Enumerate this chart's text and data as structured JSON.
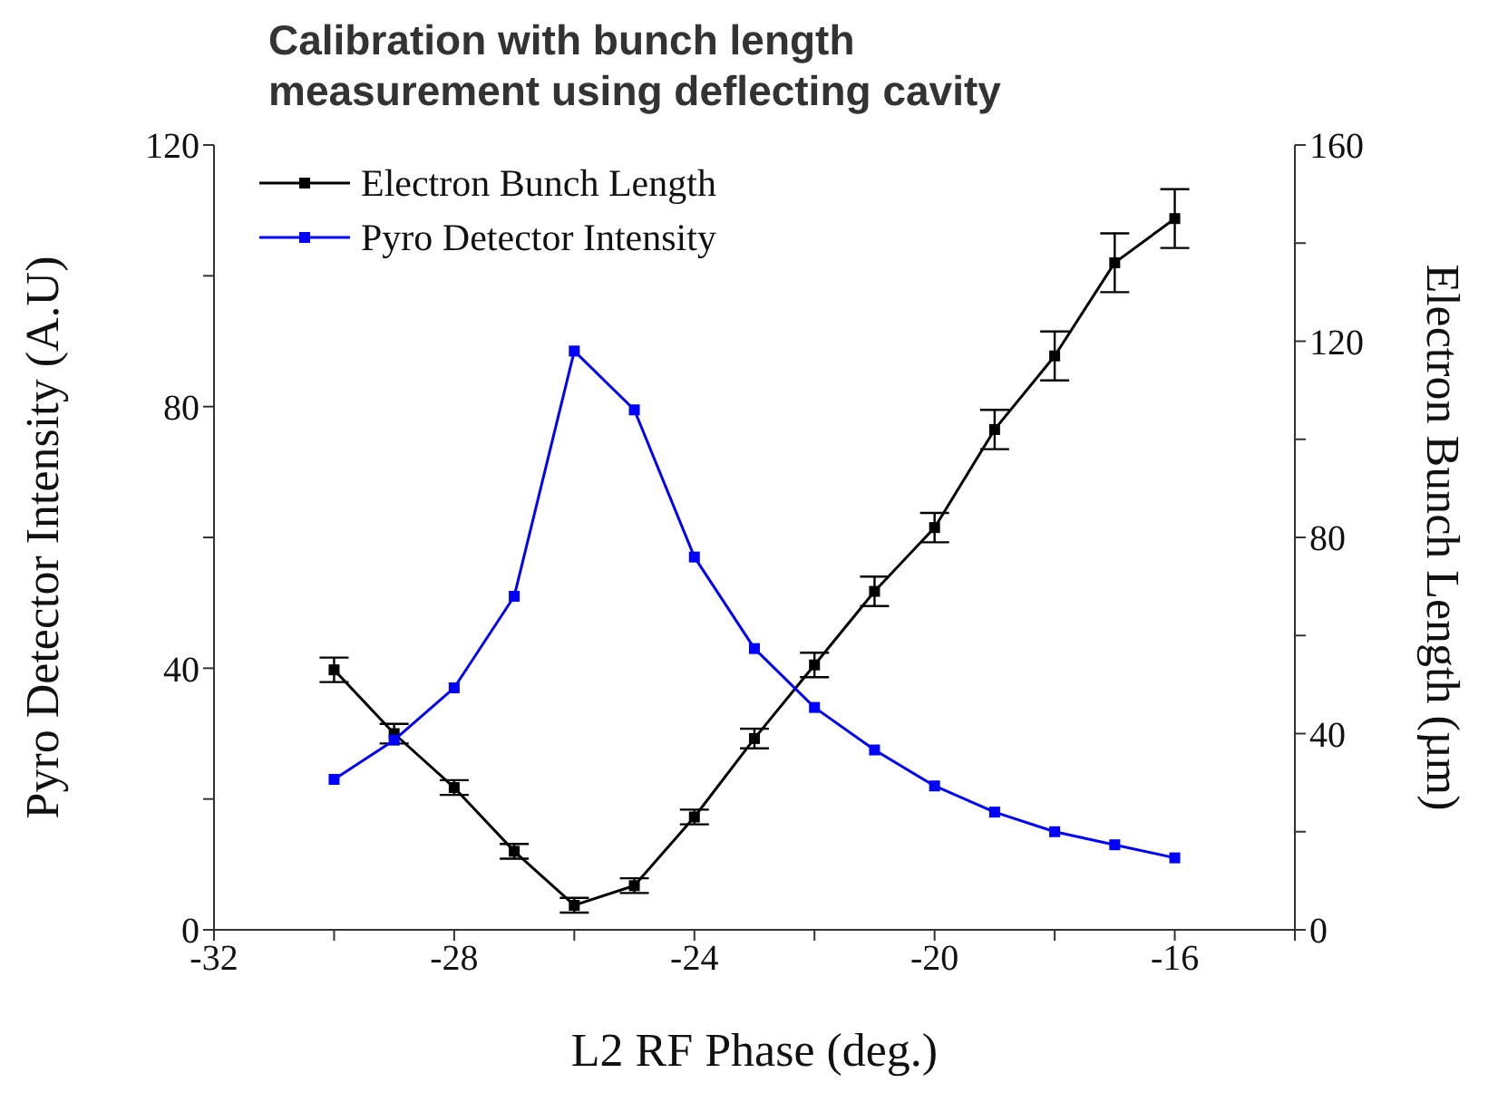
{
  "chart_data": {
    "type": "line",
    "title": "Calibration with bunch length\nmeasurement using deflecting cavity",
    "xlabel": "L2 RF Phase (deg.)",
    "ylabel": "Pyro Detector Intensity (A.U)",
    "y2label": "Electron Bunch Length (µm)",
    "x": [
      -30,
      -29,
      -28,
      -27,
      -26,
      -25,
      -24,
      -23,
      -22,
      -21,
      -20,
      -19,
      -18,
      -17,
      -16
    ],
    "series": [
      {
        "name": "Electron Bunch Length",
        "color": "#000000",
        "axis": "y2",
        "values": [
          53,
          40,
          29,
          16,
          5,
          9,
          23,
          39,
          54,
          69,
          82,
          102,
          117,
          136,
          145
        ],
        "errors": [
          2.5,
          2,
          1.5,
          1.5,
          1.5,
          1.5,
          1.5,
          2,
          2.5,
          3,
          3,
          4,
          5,
          6,
          6
        ]
      },
      {
        "name": "Pyro Detector Intensity",
        "color": "#0000ff",
        "values": [
          23,
          29,
          37,
          51,
          88.5,
          79.5,
          57,
          43,
          34,
          27.5,
          22,
          18,
          15,
          13,
          11
        ]
      }
    ],
    "xlim": [
      -32,
      -14
    ],
    "xticks": [
      -32,
      {
        "value": -30,
        "label": null
      },
      -28,
      {
        "value": -26,
        "label": null
      },
      -24,
      {
        "value": -22,
        "label": null
      },
      -20,
      {
        "value": -18,
        "label": null
      },
      -16,
      {
        "value": -14,
        "label": null
      }
    ],
    "ylim": [
      0,
      120
    ],
    "yticks": [
      0,
      {
        "value": 20,
        "label": null
      },
      40,
      {
        "value": 60,
        "label": null
      },
      80,
      {
        "value": 100,
        "label": null
      },
      120
    ],
    "y2lim": [
      0,
      160
    ],
    "y2ticks": [
      0,
      {
        "value": 20,
        "label": null
      },
      40,
      {
        "value": 60,
        "label": null
      },
      80,
      {
        "value": 100,
        "label": null
      },
      120,
      {
        "value": 140,
        "label": null
      },
      160
    ],
    "marker": "square",
    "line_style": "solid",
    "legend": "top left",
    "grid": false
  }
}
